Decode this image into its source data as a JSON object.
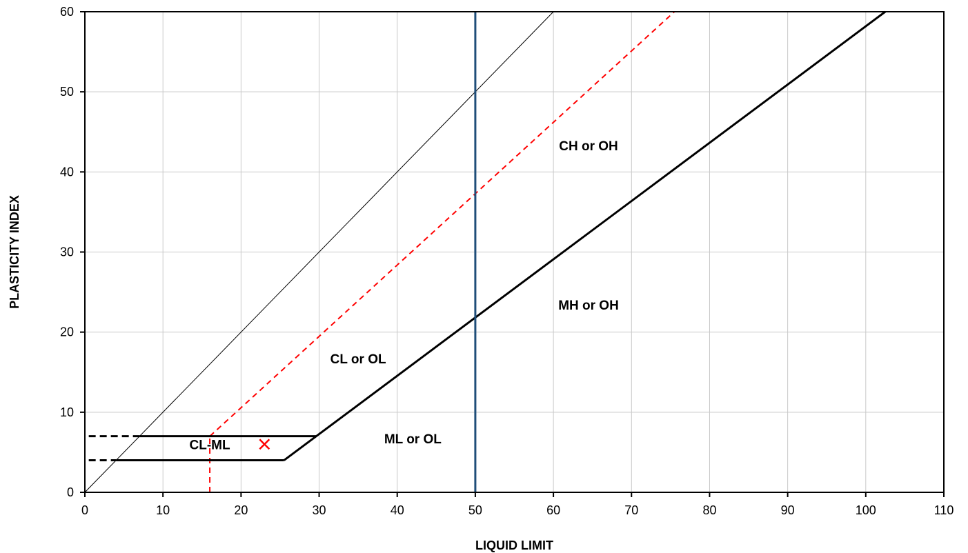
{
  "chart_data": {
    "type": "line",
    "xlabel": "LIQUID LIMIT",
    "ylabel": "PLASTICITY INDEX",
    "xlim": [
      0,
      110
    ],
    "ylim": [
      0,
      60
    ],
    "x_ticks": [
      0,
      10,
      20,
      30,
      40,
      50,
      60,
      70,
      80,
      90,
      100,
      110
    ],
    "y_ticks": [
      0,
      10,
      20,
      30,
      40,
      50,
      60
    ],
    "grid": true,
    "legend": "none",
    "series": [
      {
        "key": "diag",
        "x": [
          0,
          60
        ],
        "y": [
          0,
          60
        ],
        "color": "#000000",
        "style": "solid",
        "weight": "thin"
      },
      {
        "key": "u_line",
        "x": [
          16,
          75.5
        ],
        "y": [
          7,
          60
        ],
        "color": "#ff0000",
        "style": "dashed"
      },
      {
        "key": "u_line_vert",
        "x": [
          16,
          16
        ],
        "y": [
          0,
          7
        ],
        "color": "#ff0000",
        "style": "dashed"
      },
      {
        "key": "a_line",
        "x": [
          25.5,
          102.5
        ],
        "y": [
          4,
          60
        ],
        "color": "#000000",
        "style": "solid"
      },
      {
        "key": "upper_hatch",
        "x": [
          7,
          29.6
        ],
        "y": [
          7,
          7
        ],
        "color": "#000000",
        "style": "solid"
      },
      {
        "key": "upper_hatch_ext",
        "x": [
          0.5,
          7
        ],
        "y": [
          7,
          7
        ],
        "color": "#000000",
        "style": "dashed"
      },
      {
        "key": "lower_hatch",
        "x": [
          4,
          25.5
        ],
        "y": [
          4,
          4
        ],
        "color": "#000000",
        "style": "solid"
      },
      {
        "key": "lower_hatch_ext",
        "x": [
          0.5,
          4
        ],
        "y": [
          4,
          4
        ],
        "color": "#000000",
        "style": "dashed"
      },
      {
        "key": "ll50",
        "x": [
          50,
          50
        ],
        "y": [
          0,
          60
        ],
        "color": "#1f4e79",
        "style": "solid"
      }
    ],
    "points": [
      {
        "x": 23,
        "y": 6,
        "marker": "x",
        "color": "#ff0000"
      }
    ],
    "annotations": [
      {
        "text": "CH or OH",
        "x": 64.5,
        "y": 42.7
      },
      {
        "text": "MH or OH",
        "x": 64.5,
        "y": 22.8
      },
      {
        "text": "CL or OL",
        "x": 35,
        "y": 16.1
      },
      {
        "text": "ML or OL",
        "x": 42,
        "y": 6.1
      },
      {
        "text": "CL-ML",
        "x": 16,
        "y": 5.4
      }
    ]
  }
}
